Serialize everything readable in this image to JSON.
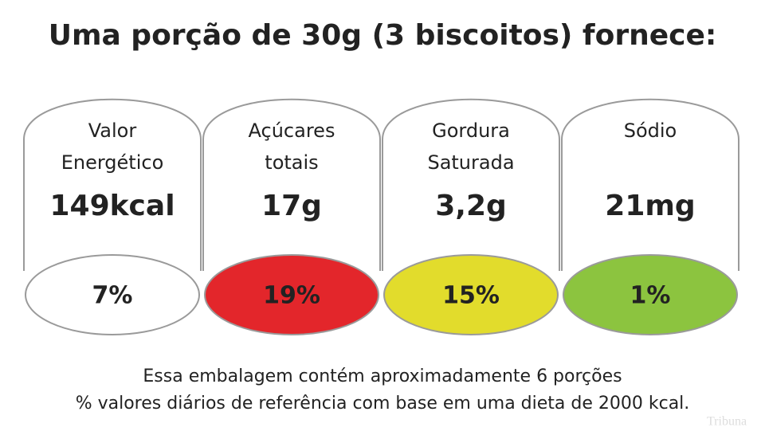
{
  "title": "Uma porção de 30g (3 biscoitos) fornece:",
  "panels": [
    {
      "label": [
        "Valor",
        "Energético"
      ],
      "amount": "149kcal",
      "percent": "7%",
      "color": "#ffffff"
    },
    {
      "label": [
        "Açúcares",
        "totais"
      ],
      "amount": "17g",
      "percent": "19%",
      "color": "#e3262b"
    },
    {
      "label": [
        "Gordura",
        "Saturada"
      ],
      "amount": "3,2g",
      "percent": "15%",
      "color": "#e2dc2c"
    },
    {
      "label": [
        "Sódio"
      ],
      "amount": "21mg",
      "percent": "1%",
      "color": "#8cc43f"
    }
  ],
  "footer": [
    "Essa embalagem contém aproximadamente 6 porções",
    "% valores diários de referência com base em uma dieta de 2000 kcal."
  ],
  "watermark": "Tribuna"
}
